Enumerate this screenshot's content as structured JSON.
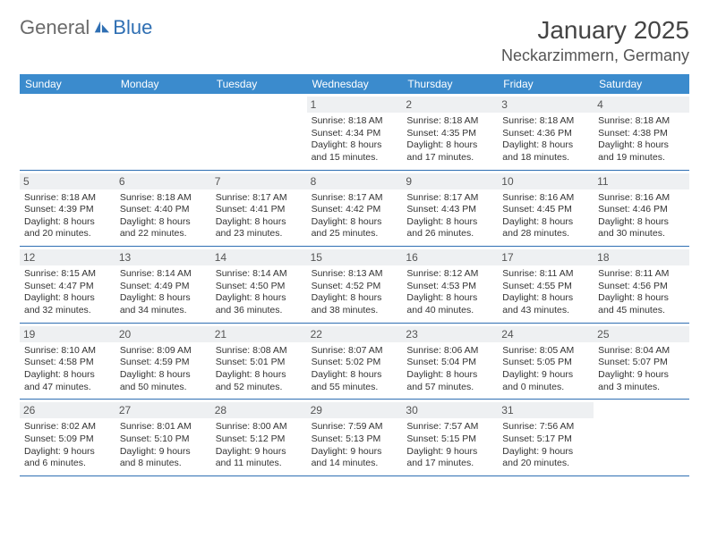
{
  "brand": {
    "part1": "General",
    "part2": "Blue"
  },
  "header": {
    "month": "January 2025",
    "location": "Neckarzimmern, Germany"
  },
  "colors": {
    "header_bg": "#3b8bcd",
    "header_text": "#ffffff",
    "daynum_bg": "#eef0f2",
    "rule": "#2f6fb3",
    "body_text": "#333333",
    "logo_gray": "#6a6a6a",
    "logo_blue": "#2f6fb3"
  },
  "dayNames": [
    "Sunday",
    "Monday",
    "Tuesday",
    "Wednesday",
    "Thursday",
    "Friday",
    "Saturday"
  ],
  "weeks": [
    [
      {
        "n": "",
        "sr": "",
        "ss": "",
        "dl": ""
      },
      {
        "n": "",
        "sr": "",
        "ss": "",
        "dl": ""
      },
      {
        "n": "",
        "sr": "",
        "ss": "",
        "dl": ""
      },
      {
        "n": "1",
        "sr": "8:18 AM",
        "ss": "4:34 PM",
        "dl": "8 hours and 15 minutes."
      },
      {
        "n": "2",
        "sr": "8:18 AM",
        "ss": "4:35 PM",
        "dl": "8 hours and 17 minutes."
      },
      {
        "n": "3",
        "sr": "8:18 AM",
        "ss": "4:36 PM",
        "dl": "8 hours and 18 minutes."
      },
      {
        "n": "4",
        "sr": "8:18 AM",
        "ss": "4:38 PM",
        "dl": "8 hours and 19 minutes."
      }
    ],
    [
      {
        "n": "5",
        "sr": "8:18 AM",
        "ss": "4:39 PM",
        "dl": "8 hours and 20 minutes."
      },
      {
        "n": "6",
        "sr": "8:18 AM",
        "ss": "4:40 PM",
        "dl": "8 hours and 22 minutes."
      },
      {
        "n": "7",
        "sr": "8:17 AM",
        "ss": "4:41 PM",
        "dl": "8 hours and 23 minutes."
      },
      {
        "n": "8",
        "sr": "8:17 AM",
        "ss": "4:42 PM",
        "dl": "8 hours and 25 minutes."
      },
      {
        "n": "9",
        "sr": "8:17 AM",
        "ss": "4:43 PM",
        "dl": "8 hours and 26 minutes."
      },
      {
        "n": "10",
        "sr": "8:16 AM",
        "ss": "4:45 PM",
        "dl": "8 hours and 28 minutes."
      },
      {
        "n": "11",
        "sr": "8:16 AM",
        "ss": "4:46 PM",
        "dl": "8 hours and 30 minutes."
      }
    ],
    [
      {
        "n": "12",
        "sr": "8:15 AM",
        "ss": "4:47 PM",
        "dl": "8 hours and 32 minutes."
      },
      {
        "n": "13",
        "sr": "8:14 AM",
        "ss": "4:49 PM",
        "dl": "8 hours and 34 minutes."
      },
      {
        "n": "14",
        "sr": "8:14 AM",
        "ss": "4:50 PM",
        "dl": "8 hours and 36 minutes."
      },
      {
        "n": "15",
        "sr": "8:13 AM",
        "ss": "4:52 PM",
        "dl": "8 hours and 38 minutes."
      },
      {
        "n": "16",
        "sr": "8:12 AM",
        "ss": "4:53 PM",
        "dl": "8 hours and 40 minutes."
      },
      {
        "n": "17",
        "sr": "8:11 AM",
        "ss": "4:55 PM",
        "dl": "8 hours and 43 minutes."
      },
      {
        "n": "18",
        "sr": "8:11 AM",
        "ss": "4:56 PM",
        "dl": "8 hours and 45 minutes."
      }
    ],
    [
      {
        "n": "19",
        "sr": "8:10 AM",
        "ss": "4:58 PM",
        "dl": "8 hours and 47 minutes."
      },
      {
        "n": "20",
        "sr": "8:09 AM",
        "ss": "4:59 PM",
        "dl": "8 hours and 50 minutes."
      },
      {
        "n": "21",
        "sr": "8:08 AM",
        "ss": "5:01 PM",
        "dl": "8 hours and 52 minutes."
      },
      {
        "n": "22",
        "sr": "8:07 AM",
        "ss": "5:02 PM",
        "dl": "8 hours and 55 minutes."
      },
      {
        "n": "23",
        "sr": "8:06 AM",
        "ss": "5:04 PM",
        "dl": "8 hours and 57 minutes."
      },
      {
        "n": "24",
        "sr": "8:05 AM",
        "ss": "5:05 PM",
        "dl": "9 hours and 0 minutes."
      },
      {
        "n": "25",
        "sr": "8:04 AM",
        "ss": "5:07 PM",
        "dl": "9 hours and 3 minutes."
      }
    ],
    [
      {
        "n": "26",
        "sr": "8:02 AM",
        "ss": "5:09 PM",
        "dl": "9 hours and 6 minutes."
      },
      {
        "n": "27",
        "sr": "8:01 AM",
        "ss": "5:10 PM",
        "dl": "9 hours and 8 minutes."
      },
      {
        "n": "28",
        "sr": "8:00 AM",
        "ss": "5:12 PM",
        "dl": "9 hours and 11 minutes."
      },
      {
        "n": "29",
        "sr": "7:59 AM",
        "ss": "5:13 PM",
        "dl": "9 hours and 14 minutes."
      },
      {
        "n": "30",
        "sr": "7:57 AM",
        "ss": "5:15 PM",
        "dl": "9 hours and 17 minutes."
      },
      {
        "n": "31",
        "sr": "7:56 AM",
        "ss": "5:17 PM",
        "dl": "9 hours and 20 minutes."
      },
      {
        "n": "",
        "sr": "",
        "ss": "",
        "dl": ""
      }
    ]
  ],
  "labels": {
    "sunrise": "Sunrise: ",
    "sunset": "Sunset: ",
    "daylight": "Daylight: "
  }
}
